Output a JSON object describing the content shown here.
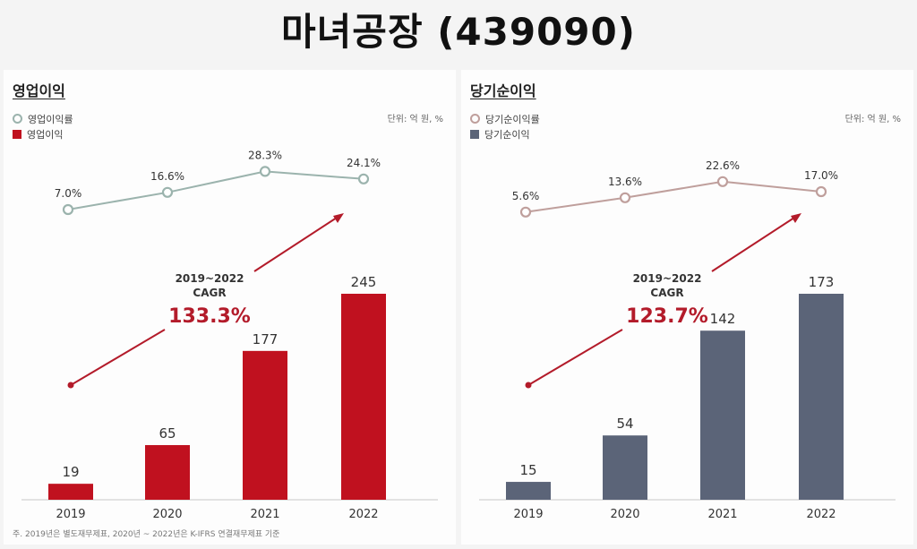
{
  "page_title": "마녀공장 (439090)",
  "footnote": "주. 2019년은 별도재무제표, 2020년 ~ 2022년은 K-IFRS 연결재무제표 기준",
  "chart_data": [
    {
      "type": "bar",
      "title": "영업이익",
      "unit_label": "단위: 억 원, %",
      "categories": [
        "2019",
        "2020",
        "2021",
        "2022"
      ],
      "bar_series": {
        "name": "영업이익",
        "values": [
          19,
          65,
          177,
          245
        ],
        "color": "#c0111f"
      },
      "line_series": {
        "name": "영업이익률",
        "values": [
          7.0,
          16.6,
          28.3,
          24.1
        ],
        "labels": [
          "7.0%",
          "16.6%",
          "28.3%",
          "24.1%"
        ],
        "color": "#9bb3ad"
      },
      "cagr_label": "2019~2022\nCAGR",
      "cagr_value": "133.3%",
      "arrow_color": "#b31b2a"
    },
    {
      "type": "bar",
      "title": "당기순이익",
      "unit_label": "단위: 억 원, %",
      "categories": [
        "2019",
        "2020",
        "2021",
        "2022"
      ],
      "bar_series": {
        "name": "당기순이익",
        "values": [
          15,
          54,
          142,
          173
        ],
        "color": "#5b6478"
      },
      "line_series": {
        "name": "당기순이익률",
        "values": [
          5.6,
          13.6,
          22.6,
          17.0
        ],
        "labels": [
          "5.6%",
          "13.6%",
          "22.6%",
          "17.0%"
        ],
        "color": "#bf9f9c"
      },
      "cagr_label": "2019~2022\nCAGR",
      "cagr_value": "123.7%",
      "arrow_color": "#b31b2a"
    }
  ]
}
